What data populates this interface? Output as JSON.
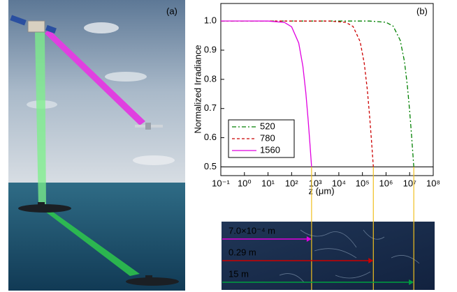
{
  "panel_a_label": "(a)",
  "chart_data": {
    "type": "line",
    "panel_label": "(b)",
    "x_label": "z (μm)",
    "y_label": "Normalized Irradiance",
    "log_x": true,
    "xlim": [
      0.1,
      100000000
    ],
    "ylim": [
      0.47,
      1.06
    ],
    "xticks": [
      {
        "value": 0.1,
        "label": "10⁻¹"
      },
      {
        "value": 1,
        "label": "10⁰"
      },
      {
        "value": 10,
        "label": "10¹"
      },
      {
        "value": 100,
        "label": "10²"
      },
      {
        "value": 1000,
        "label": "10³"
      },
      {
        "value": 10000,
        "label": "10⁴"
      },
      {
        "value": 100000,
        "label": "10⁵"
      },
      {
        "value": 1000000,
        "label": "10⁶"
      },
      {
        "value": 10000000,
        "label": "10⁷"
      },
      {
        "value": 100000000,
        "label": "10⁸"
      }
    ],
    "yticks": [
      0.5,
      0.6,
      0.7,
      0.8,
      0.9,
      {
        "value": 1,
        "label": "1.0"
      }
    ],
    "hline": 0.5,
    "legend": "lower left",
    "series": [
      {
        "name": "520",
        "color": "#008000",
        "dash": "6 3 2 3",
        "x": [
          0.1,
          200000,
          1000000,
          2000000,
          4000000,
          6000000,
          8000000,
          10000000,
          12000000,
          15000000
        ],
        "values": [
          1.0,
          0.9998,
          0.9956,
          0.9825,
          0.9336,
          0.8621,
          0.7785,
          0.6923,
          0.6098,
          0.5
        ]
      },
      {
        "name": "780",
        "color": "#cc0000",
        "dash": "4 3",
        "x": [
          0.1,
          4000,
          20000,
          40000,
          80000,
          120000,
          160000,
          200000,
          240000,
          290000
        ],
        "values": [
          1.0,
          0.9998,
          0.9953,
          0.9813,
          0.9293,
          0.8538,
          0.7666,
          0.6777,
          0.5935,
          0.5
        ]
      },
      {
        "name": "1560",
        "color": "#e000e0",
        "dash": "",
        "x": [
          0.1,
          1,
          10,
          50,
          100,
          200,
          300,
          400,
          500,
          600,
          700
        ],
        "values": [
          1.0,
          1.0,
          0.9998,
          0.9949,
          0.98,
          0.9245,
          0.8448,
          0.7538,
          0.6622,
          0.5765,
          0.5
        ]
      }
    ],
    "annotations": [
      {
        "text": "7.0×10⁻⁴ m",
        "color": "#e000e0"
      },
      {
        "text": "0.29 m",
        "color": "#cc0000"
      },
      {
        "text": "15 m",
        "color": "#00a040"
      }
    ]
  }
}
